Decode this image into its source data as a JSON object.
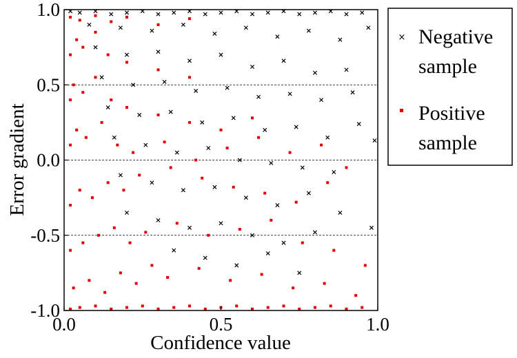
{
  "chart_data": {
    "type": "scatter",
    "title": "",
    "xlabel": "Confidence value",
    "ylabel": "Error gradient",
    "xlim": [
      0.0,
      1.0
    ],
    "ylim": [
      -1.0,
      1.0
    ],
    "x_ticks": [
      "0.0",
      "0.5",
      "1.0"
    ],
    "y_ticks": [
      "1.0",
      "0.5",
      "0.0",
      "-0.5",
      "-1.0"
    ],
    "grid": "dashed horizontal lines at y = 0.5, 0.0, -0.5",
    "legend_position": "right, outside plot",
    "series": [
      {
        "name": "Negative sample",
        "marker": "x",
        "color": "#000000",
        "distribution": "dense near y = 1.0, spreading downward as confidence increases",
        "points": [
          [
            0.02,
            0.99
          ],
          [
            0.05,
            0.98
          ],
          [
            0.1,
            0.99
          ],
          [
            0.15,
            0.97
          ],
          [
            0.2,
            0.98
          ],
          [
            0.25,
            0.99
          ],
          [
            0.3,
            0.97
          ],
          [
            0.35,
            0.98
          ],
          [
            0.4,
            0.99
          ],
          [
            0.45,
            0.97
          ],
          [
            0.5,
            0.98
          ],
          [
            0.55,
            0.99
          ],
          [
            0.6,
            0.97
          ],
          [
            0.65,
            0.98
          ],
          [
            0.7,
            0.99
          ],
          [
            0.75,
            0.97
          ],
          [
            0.8,
            0.98
          ],
          [
            0.85,
            0.99
          ],
          [
            0.9,
            0.97
          ],
          [
            0.95,
            0.98
          ],
          [
            0.08,
            0.9
          ],
          [
            0.18,
            0.88
          ],
          [
            0.28,
            0.86
          ],
          [
            0.38,
            0.9
          ],
          [
            0.48,
            0.84
          ],
          [
            0.58,
            0.88
          ],
          [
            0.68,
            0.82
          ],
          [
            0.78,
            0.86
          ],
          [
            0.88,
            0.8
          ],
          [
            0.97,
            0.88
          ],
          [
            0.1,
            0.75
          ],
          [
            0.2,
            0.7
          ],
          [
            0.3,
            0.72
          ],
          [
            0.4,
            0.66
          ],
          [
            0.5,
            0.7
          ],
          [
            0.6,
            0.62
          ],
          [
            0.7,
            0.66
          ],
          [
            0.8,
            0.58
          ],
          [
            0.9,
            0.6
          ],
          [
            0.12,
            0.55
          ],
          [
            0.22,
            0.5
          ],
          [
            0.32,
            0.52
          ],
          [
            0.42,
            0.46
          ],
          [
            0.52,
            0.48
          ],
          [
            0.62,
            0.42
          ],
          [
            0.72,
            0.44
          ],
          [
            0.82,
            0.4
          ],
          [
            0.92,
            0.45
          ],
          [
            0.14,
            0.35
          ],
          [
            0.24,
            0.3
          ],
          [
            0.34,
            0.32
          ],
          [
            0.44,
            0.25
          ],
          [
            0.54,
            0.28
          ],
          [
            0.64,
            0.2
          ],
          [
            0.74,
            0.22
          ],
          [
            0.84,
            0.15
          ],
          [
            0.94,
            0.24
          ],
          [
            0.99,
            0.13
          ],
          [
            0.16,
            0.15
          ],
          [
            0.26,
            0.1
          ],
          [
            0.36,
            0.05
          ],
          [
            0.46,
            0.08
          ],
          [
            0.56,
            0.0
          ],
          [
            0.66,
            -0.02
          ],
          [
            0.76,
            -0.05
          ],
          [
            0.86,
            -0.08
          ],
          [
            0.18,
            -0.1
          ],
          [
            0.28,
            -0.15
          ],
          [
            0.38,
            -0.2
          ],
          [
            0.48,
            -0.18
          ],
          [
            0.58,
            -0.25
          ],
          [
            0.68,
            -0.3
          ],
          [
            0.78,
            -0.22
          ],
          [
            0.88,
            -0.35
          ],
          [
            0.2,
            -0.35
          ],
          [
            0.3,
            -0.4
          ],
          [
            0.4,
            -0.45
          ],
          [
            0.5,
            -0.42
          ],
          [
            0.6,
            -0.5
          ],
          [
            0.7,
            -0.55
          ],
          [
            0.8,
            -0.48
          ],
          [
            0.98,
            -0.45
          ],
          [
            0.35,
            -0.6
          ],
          [
            0.45,
            -0.65
          ],
          [
            0.55,
            -0.7
          ],
          [
            0.65,
            -0.62
          ],
          [
            0.75,
            -0.75
          ]
        ]
      },
      {
        "name": "Positive sample",
        "marker": "square",
        "color": "#e00000",
        "distribution": "dense near y = -1.0, spreading upward toward low confidence",
        "points": [
          [
            0.02,
            -0.99
          ],
          [
            0.05,
            -0.98
          ],
          [
            0.1,
            -0.97
          ],
          [
            0.15,
            -0.99
          ],
          [
            0.2,
            -0.98
          ],
          [
            0.25,
            -0.97
          ],
          [
            0.3,
            -0.99
          ],
          [
            0.35,
            -0.98
          ],
          [
            0.4,
            -0.97
          ],
          [
            0.45,
            -0.99
          ],
          [
            0.5,
            -0.98
          ],
          [
            0.55,
            -0.97
          ],
          [
            0.6,
            -0.99
          ],
          [
            0.65,
            -0.98
          ],
          [
            0.7,
            -0.97
          ],
          [
            0.75,
            -0.99
          ],
          [
            0.8,
            -0.98
          ],
          [
            0.85,
            -0.97
          ],
          [
            0.9,
            -0.99
          ],
          [
            0.95,
            -0.98
          ],
          [
            0.03,
            -0.85
          ],
          [
            0.08,
            -0.8
          ],
          [
            0.13,
            -0.88
          ],
          [
            0.18,
            -0.75
          ],
          [
            0.23,
            -0.82
          ],
          [
            0.28,
            -0.7
          ],
          [
            0.33,
            -0.78
          ],
          [
            0.43,
            -0.72
          ],
          [
            0.53,
            -0.8
          ],
          [
            0.63,
            -0.76
          ],
          [
            0.73,
            -0.85
          ],
          [
            0.83,
            -0.82
          ],
          [
            0.93,
            -0.9
          ],
          [
            0.02,
            -0.6
          ],
          [
            0.06,
            -0.55
          ],
          [
            0.11,
            -0.5
          ],
          [
            0.16,
            -0.45
          ],
          [
            0.21,
            -0.55
          ],
          [
            0.26,
            -0.48
          ],
          [
            0.36,
            -0.42
          ],
          [
            0.46,
            -0.5
          ],
          [
            0.56,
            -0.46
          ],
          [
            0.66,
            -0.4
          ],
          [
            0.76,
            -0.55
          ],
          [
            0.86,
            -0.6
          ],
          [
            0.96,
            -0.7
          ],
          [
            0.02,
            -0.3
          ],
          [
            0.05,
            -0.2
          ],
          [
            0.09,
            -0.25
          ],
          [
            0.14,
            -0.15
          ],
          [
            0.19,
            -0.2
          ],
          [
            0.24,
            -0.1
          ],
          [
            0.34,
            -0.05
          ],
          [
            0.44,
            -0.12
          ],
          [
            0.54,
            -0.18
          ],
          [
            0.64,
            -0.22
          ],
          [
            0.74,
            -0.28
          ],
          [
            0.84,
            -0.15
          ],
          [
            0.9,
            -0.05
          ],
          [
            0.02,
            0.1
          ],
          [
            0.04,
            0.2
          ],
          [
            0.07,
            0.15
          ],
          [
            0.12,
            0.25
          ],
          [
            0.17,
            0.1
          ],
          [
            0.22,
            0.05
          ],
          [
            0.32,
            0.12
          ],
          [
            0.42,
            0.0
          ],
          [
            0.52,
            0.08
          ],
          [
            0.62,
            0.15
          ],
          [
            0.72,
            0.05
          ],
          [
            0.82,
            0.1
          ],
          [
            0.02,
            0.4
          ],
          [
            0.03,
            0.5
          ],
          [
            0.06,
            0.45
          ],
          [
            0.1,
            0.55
          ],
          [
            0.15,
            0.4
          ],
          [
            0.2,
            0.35
          ],
          [
            0.3,
            0.3
          ],
          [
            0.4,
            0.25
          ],
          [
            0.5,
            0.2
          ],
          [
            0.6,
            0.28
          ],
          [
            0.02,
            0.7
          ],
          [
            0.04,
            0.8
          ],
          [
            0.06,
            0.75
          ],
          [
            0.1,
            0.85
          ],
          [
            0.14,
            0.7
          ],
          [
            0.2,
            0.65
          ],
          [
            0.3,
            0.6
          ],
          [
            0.4,
            0.55
          ],
          [
            0.02,
            0.95
          ],
          [
            0.05,
            0.93
          ],
          [
            0.1,
            0.96
          ],
          [
            0.15,
            0.92
          ],
          [
            0.2,
            0.95
          ],
          [
            0.3,
            0.9
          ],
          [
            0.4,
            0.94
          ]
        ]
      }
    ]
  }
}
